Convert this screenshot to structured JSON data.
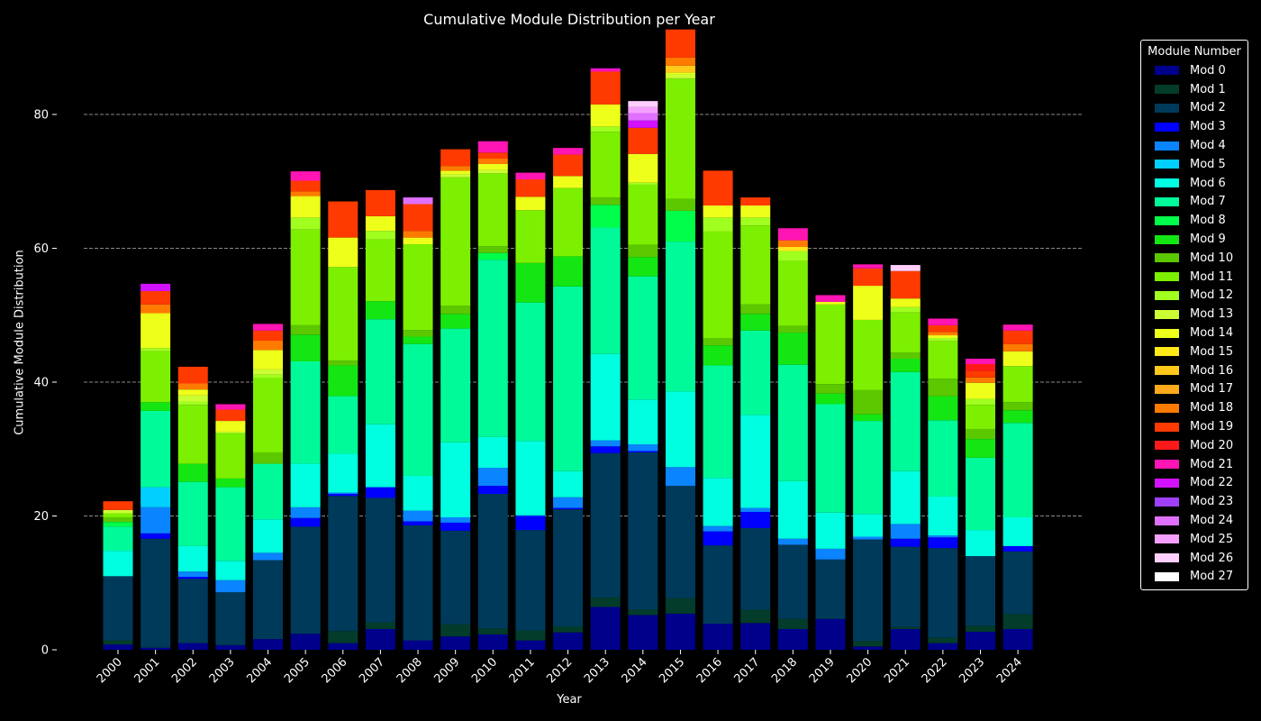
{
  "chart_data": {
    "type": "bar",
    "stacked": true,
    "title": "Cumulative Module Distribution per Year",
    "xlabel": "Year",
    "ylabel": "Cumulative Module Distribution",
    "ylim": [
      0,
      92
    ],
    "yticks": [
      0,
      20,
      40,
      60,
      80
    ],
    "grid": "horizontal dashed",
    "legend_title": "Module Number",
    "legend_position": "outside right",
    "categories": [
      "2000",
      "2001",
      "2002",
      "2003",
      "2004",
      "2005",
      "2006",
      "2007",
      "2008",
      "2009",
      "2010",
      "2011",
      "2012",
      "2013",
      "2014",
      "2015",
      "2016",
      "2017",
      "2018",
      "2019",
      "2020",
      "2021",
      "2022",
      "2023",
      "2024"
    ],
    "series": [
      {
        "name": "Mod 0",
        "color": "#00008b",
        "values": [
          0.8,
          0.3,
          1,
          0.7,
          1.6,
          2.4,
          1,
          3.1,
          1.4,
          2,
          2.3,
          1.4,
          2.6,
          6.4,
          5.2,
          5.4,
          3.9,
          4,
          3.1,
          4.6,
          0.5,
          3.1,
          1,
          2.7,
          3.1
        ]
      },
      {
        "name": "Mod 1",
        "color": "#033c2a",
        "values": [
          0.6,
          0,
          0,
          0,
          0,
          0,
          1.8,
          1,
          0,
          1.8,
          0.9,
          1.5,
          0.9,
          1.4,
          0.8,
          2.3,
          0,
          2,
          1.5,
          0,
          0.8,
          0.3,
          0.8,
          0.9,
          2.2
        ]
      },
      {
        "name": "Mod 2",
        "color": "#003a5a",
        "values": [
          9.6,
          16.3,
          9.6,
          7.9,
          11.8,
          16,
          20.2,
          18.6,
          17.2,
          14,
          20.1,
          15,
          17.5,
          21.6,
          23.5,
          16.8,
          11.7,
          12.2,
          11.1,
          8.9,
          15.2,
          12,
          13.4,
          10.4,
          9.4
        ]
      },
      {
        "name": "Mod 3",
        "color": "#0000ff",
        "values": [
          0,
          0.8,
          0.3,
          0,
          0,
          1.3,
          0.3,
          1.6,
          0.6,
          1.2,
          1.2,
          2.1,
          0.2,
          1,
          0.2,
          0,
          2.1,
          2.4,
          0,
          0,
          0,
          1.2,
          1.6,
          0,
          0.8
        ]
      },
      {
        "name": "Mod 4",
        "color": "#0a84ff",
        "values": [
          0,
          3.9,
          0.8,
          1.8,
          1.1,
          1.6,
          0.2,
          0,
          1.6,
          0.8,
          2.7,
          0.1,
          1.6,
          0.9,
          1,
          2.8,
          0.8,
          0.6,
          0.9,
          1.6,
          0.4,
          2.2,
          0.3,
          0,
          0
        ]
      },
      {
        "name": "Mod 5",
        "color": "#00cfff",
        "values": [
          0,
          3,
          0,
          0,
          0,
          0,
          0,
          0,
          0,
          0,
          0,
          0,
          0,
          0,
          0,
          0,
          0,
          0,
          0,
          0,
          0,
          0,
          0,
          0,
          0
        ]
      },
      {
        "name": "Mod 6",
        "color": "#00ffe0",
        "values": [
          3.8,
          0,
          3.8,
          2.9,
          5,
          6.5,
          5.8,
          9.4,
          5.2,
          11.2,
          4.6,
          11.1,
          3.9,
          12.9,
          6.7,
          11.3,
          7.2,
          13.9,
          8.6,
          5.4,
          3.4,
          7.9,
          5.8,
          3.9,
          4.3
        ]
      },
      {
        "name": "Mod 7",
        "color": "#00fa9a",
        "values": [
          3.6,
          11.4,
          9.6,
          11,
          8.3,
          15.3,
          8.6,
          15.7,
          19.7,
          17,
          26.5,
          20.7,
          27.6,
          18.9,
          18.4,
          22.4,
          16.8,
          12.6,
          17.4,
          16.2,
          13.9,
          14.8,
          11.4,
          10.8,
          14.1
        ]
      },
      {
        "name": "Mod 8",
        "color": "#00ff4a",
        "values": [
          0.7,
          0,
          0,
          0,
          0,
          0,
          0,
          0,
          0,
          0,
          1,
          0,
          0,
          3.4,
          0,
          4.6,
          0,
          0,
          0,
          0,
          0,
          0,
          0,
          0,
          0
        ]
      },
      {
        "name": "Mod 9",
        "color": "#14e614",
        "values": [
          0,
          1.3,
          2.7,
          1.3,
          0,
          4,
          4.6,
          2.7,
          1.1,
          2.2,
          0,
          5.9,
          4.5,
          0,
          2.9,
          0,
          3,
          2.5,
          4.8,
          1.6,
          1,
          2,
          3.6,
          2.8,
          1.9
        ]
      },
      {
        "name": "Mod 10",
        "color": "#5bc800",
        "values": [
          0.7,
          0,
          0,
          0,
          1.7,
          1.4,
          0.7,
          0,
          1,
          1.2,
          1,
          0,
          0,
          1.1,
          1.8,
          1.8,
          1.1,
          1.4,
          1,
          1.4,
          3.6,
          0.9,
          2.6,
          1.5,
          1.2
        ]
      },
      {
        "name": "Mod 11",
        "color": "#7cf000",
        "values": [
          0.6,
          7.6,
          8.8,
          6.8,
          11.1,
          14.3,
          14,
          9.2,
          12.8,
          19.2,
          10.9,
          7.9,
          10.2,
          9.8,
          9,
          17.9,
          15.9,
          11.8,
          9.7,
          11.9,
          10.5,
          6,
          5.6,
          3.6,
          5.4
        ]
      },
      {
        "name": "Mod 12",
        "color": "#a0ff1f",
        "values": [
          0,
          0.5,
          0.5,
          0,
          0.5,
          1.8,
          0,
          1.3,
          0,
          0,
          0,
          0,
          0,
          0.8,
          0.3,
          0.1,
          2.1,
          1.2,
          1.5,
          0,
          0,
          0.8,
          0.5,
          0.9,
          0
        ]
      },
      {
        "name": "Mod 13",
        "color": "#ccff33",
        "values": [
          0.5,
          0,
          0.9,
          0.2,
          0.8,
          0,
          0,
          0,
          0,
          0.5,
          0.5,
          0,
          0,
          0,
          0,
          0.6,
          0,
          0,
          0,
          0,
          0,
          0,
          0,
          0,
          0
        ]
      },
      {
        "name": "Mod 14",
        "color": "#eeff1a",
        "values": [
          0,
          5.2,
          0.9,
          1.6,
          2.9,
          3.2,
          4.4,
          2.2,
          1,
          0.5,
          0.9,
          2,
          1.8,
          3.3,
          4.3,
          0.3,
          1.8,
          1.8,
          0,
          0.4,
          5.1,
          1.3,
          0.4,
          2.4,
          2.2
        ]
      },
      {
        "name": "Mod 15",
        "color": "#ffe81a",
        "values": [
          0,
          0,
          0,
          0,
          0,
          0,
          0,
          0,
          0,
          0,
          0,
          0,
          0,
          0,
          0,
          0,
          0,
          0,
          0.6,
          0,
          0,
          0,
          0,
          0,
          0
        ]
      },
      {
        "name": "Mod 16",
        "color": "#ffc81a",
        "values": [
          0,
          0,
          0,
          0,
          0,
          0,
          0,
          0,
          0,
          0,
          0,
          0,
          0,
          0,
          0,
          1,
          0,
          0,
          0,
          0,
          0,
          0,
          0,
          0,
          0
        ]
      },
      {
        "name": "Mod 17",
        "color": "#ffaa1a",
        "values": [
          0,
          0,
          0,
          0,
          0,
          0,
          0,
          0,
          0,
          0,
          0,
          0,
          0,
          0,
          0,
          0,
          0,
          0,
          0,
          0,
          0,
          0,
          0,
          0,
          0
        ]
      },
      {
        "name": "Mod 18",
        "color": "#ff7a00",
        "values": [
          0,
          1.3,
          0.9,
          0,
          1.4,
          0.7,
          0,
          0,
          1,
          0.7,
          0.8,
          0,
          0,
          0,
          0,
          1.2,
          0,
          0,
          1,
          0,
          0,
          0,
          0.5,
          0.8,
          1.1
        ]
      },
      {
        "name": "Mod 19",
        "color": "#ff3a00",
        "values": [
          1.3,
          2,
          2.5,
          1.7,
          1.5,
          1.6,
          5.4,
          3.9,
          4,
          2.5,
          0.9,
          2.6,
          3.2,
          4.9,
          3.9,
          4.2,
          5.2,
          1.2,
          0,
          0,
          2.6,
          4.1,
          1,
          1,
          2
        ]
      },
      {
        "name": "Mod 20",
        "color": "#ff1a1a",
        "values": [
          0,
          0,
          0,
          0,
          0,
          0,
          0,
          0,
          0,
          0,
          0,
          0,
          0,
          0,
          0,
          0,
          0,
          0,
          0,
          0,
          0,
          0,
          0,
          1,
          0
        ]
      },
      {
        "name": "Mod 21",
        "color": "#ff14b4",
        "values": [
          0,
          0,
          0,
          0.8,
          1,
          1.4,
          0,
          0,
          0,
          0,
          1.7,
          1,
          1,
          0.4,
          0,
          0,
          0,
          0,
          1.8,
          1,
          0.6,
          0,
          1,
          0.8,
          0.9
        ]
      },
      {
        "name": "Mod 22",
        "color": "#d212ff",
        "values": [
          0,
          1.1,
          0,
          0,
          0,
          0,
          0,
          0,
          0,
          0,
          0,
          0,
          0,
          0.1,
          1.1,
          0,
          0,
          0,
          0,
          0,
          0,
          0,
          0,
          0,
          0
        ]
      },
      {
        "name": "Mod 23",
        "color": "#a040ff",
        "values": [
          0,
          0,
          0,
          0,
          0,
          0,
          0,
          0,
          0,
          0,
          0,
          0,
          0,
          0,
          0,
          0,
          0,
          0,
          0,
          0,
          0,
          0,
          0,
          0,
          0
        ]
      },
      {
        "name": "Mod 24",
        "color": "#e070ff",
        "values": [
          0,
          0,
          0,
          0,
          0,
          0,
          0,
          0,
          1,
          0,
          0,
          0,
          0,
          0,
          1.1,
          0,
          0,
          0,
          0,
          0,
          0,
          0,
          0,
          0,
          0
        ]
      },
      {
        "name": "Mod 25",
        "color": "#f5a0ff",
        "values": [
          0,
          0,
          0,
          0,
          0,
          0,
          0,
          0,
          0,
          0,
          0,
          0,
          0,
          0,
          0.9,
          0,
          0,
          0,
          0,
          0,
          0,
          0,
          0,
          0,
          0
        ]
      },
      {
        "name": "Mod 26",
        "color": "#ffd0ff",
        "values": [
          0,
          0,
          0,
          0,
          0,
          0,
          0,
          0,
          0,
          0,
          0,
          0,
          0,
          0,
          0.9,
          0,
          0,
          0,
          0,
          0,
          0,
          0.9,
          0,
          0,
          0
        ]
      },
      {
        "name": "Mod 27",
        "color": "#ffffff",
        "values": [
          0,
          0,
          0,
          0,
          0,
          0,
          0,
          0,
          0,
          0,
          0,
          0,
          0,
          0,
          0,
          0,
          0,
          0,
          0,
          0,
          0,
          0,
          0,
          0,
          0
        ]
      }
    ]
  }
}
